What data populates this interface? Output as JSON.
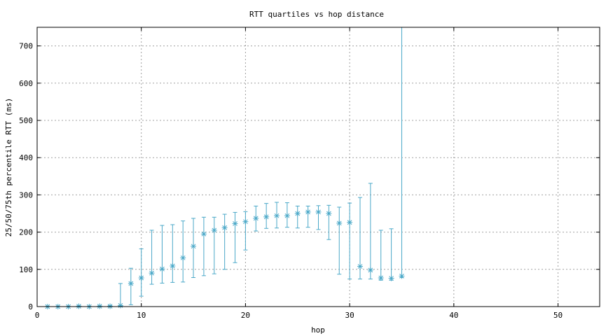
{
  "chart_data": {
    "type": "scatter",
    "title": "RTT quartiles vs hop distance",
    "xlabel": "hop",
    "ylabel": "25/50/75th percentile RTT (ms)",
    "xlim": [
      0,
      54
    ],
    "ylim": [
      0,
      750
    ],
    "xticks": [
      0,
      10,
      20,
      30,
      40,
      50
    ],
    "yticks": [
      0,
      100,
      200,
      300,
      400,
      500,
      600,
      700
    ],
    "grid": true,
    "marker": "star",
    "color": "#4aa8c8",
    "series": [
      {
        "points": [
          {
            "x": 1,
            "p25": 0,
            "median": 0,
            "p75": 1
          },
          {
            "x": 2,
            "p25": 0,
            "median": 0,
            "p75": 1
          },
          {
            "x": 3,
            "p25": 0,
            "median": 0,
            "p75": 1
          },
          {
            "x": 4,
            "p25": 0,
            "median": 1,
            "p75": 2
          },
          {
            "x": 5,
            "p25": 0,
            "median": 0,
            "p75": 1
          },
          {
            "x": 6,
            "p25": 0,
            "median": 1,
            "p75": 2
          },
          {
            "x": 7,
            "p25": 0,
            "median": 1,
            "p75": 3
          },
          {
            "x": 8,
            "p25": 1,
            "median": 3,
            "p75": 62
          },
          {
            "x": 9,
            "p25": 5,
            "median": 62,
            "p75": 103
          },
          {
            "x": 10,
            "p25": 28,
            "median": 77,
            "p75": 155
          },
          {
            "x": 11,
            "p25": 60,
            "median": 90,
            "p75": 205
          },
          {
            "x": 12,
            "p25": 63,
            "median": 101,
            "p75": 218
          },
          {
            "x": 13,
            "p25": 65,
            "median": 109,
            "p75": 220
          },
          {
            "x": 14,
            "p25": 66,
            "median": 131,
            "p75": 230
          },
          {
            "x": 15,
            "p25": 78,
            "median": 162,
            "p75": 237
          },
          {
            "x": 16,
            "p25": 83,
            "median": 195,
            "p75": 240
          },
          {
            "x": 17,
            "p25": 88,
            "median": 205,
            "p75": 240
          },
          {
            "x": 18,
            "p25": 100,
            "median": 212,
            "p75": 248
          },
          {
            "x": 19,
            "p25": 118,
            "median": 223,
            "p75": 253
          },
          {
            "x": 20,
            "p25": 152,
            "median": 228,
            "p75": 255
          },
          {
            "x": 21,
            "p25": 203,
            "median": 237,
            "p75": 270
          },
          {
            "x": 22,
            "p25": 210,
            "median": 241,
            "p75": 277
          },
          {
            "x": 23,
            "p25": 211,
            "median": 244,
            "p75": 280
          },
          {
            "x": 24,
            "p25": 213,
            "median": 244,
            "p75": 279
          },
          {
            "x": 25,
            "p25": 211,
            "median": 250,
            "p75": 270
          },
          {
            "x": 26,
            "p25": 213,
            "median": 254,
            "p75": 270
          },
          {
            "x": 27,
            "p25": 207,
            "median": 254,
            "p75": 271
          },
          {
            "x": 28,
            "p25": 180,
            "median": 250,
            "p75": 272
          },
          {
            "x": 29,
            "p25": 87,
            "median": 224,
            "p75": 267
          },
          {
            "x": 30,
            "p25": 74,
            "median": 226,
            "p75": 278
          },
          {
            "x": 31,
            "p25": 74,
            "median": 108,
            "p75": 293
          },
          {
            "x": 32,
            "p25": 74,
            "median": 98,
            "p75": 331
          },
          {
            "x": 33,
            "p25": 71,
            "median": 77,
            "p75": 205
          },
          {
            "x": 34,
            "p25": 71,
            "median": 76,
            "p75": 209
          },
          {
            "x": 35,
            "p25": 78,
            "median": 82,
            "p75": 750
          }
        ]
      }
    ]
  }
}
